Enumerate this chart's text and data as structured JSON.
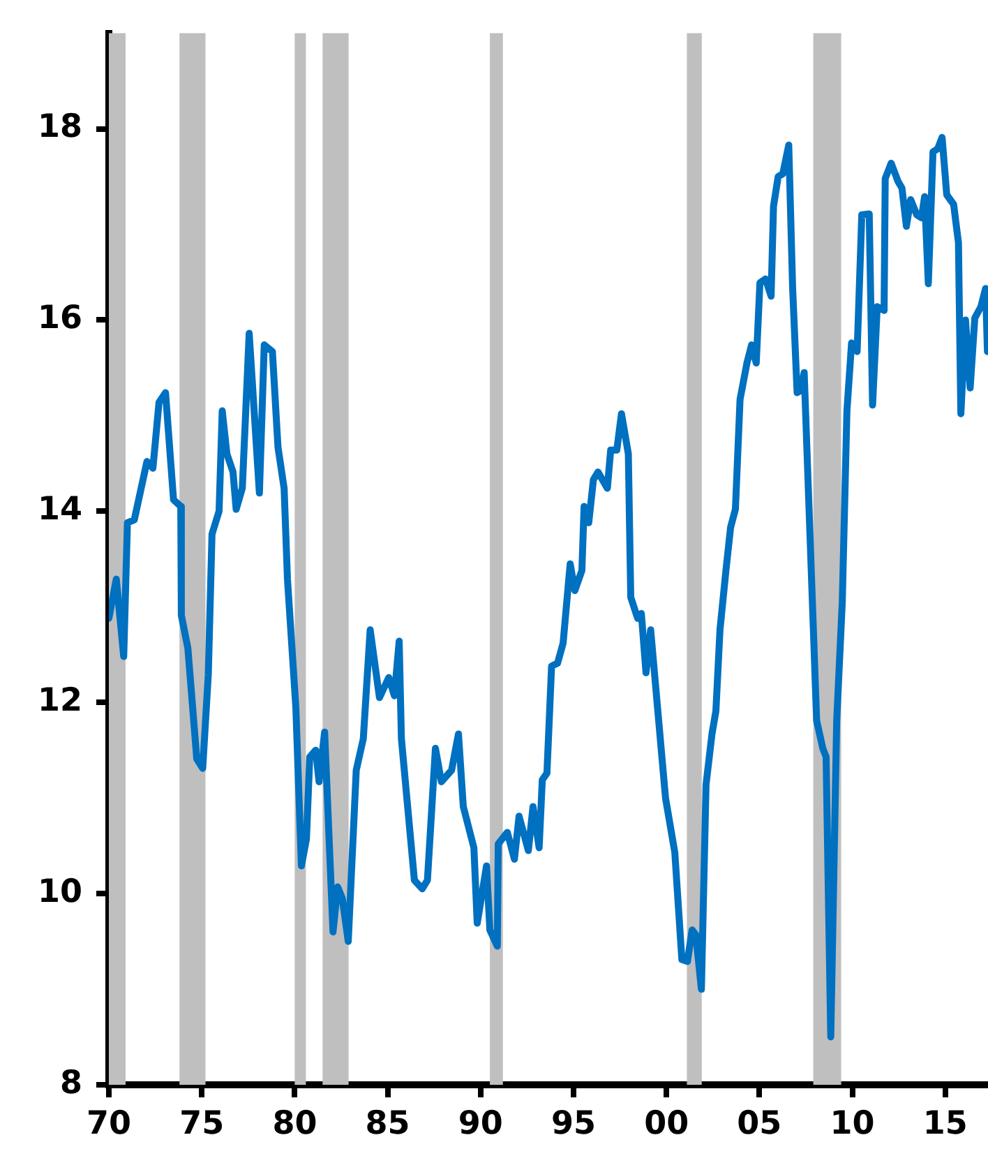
{
  "chart_data": {
    "type": "line",
    "grid": false,
    "legend": false,
    "marker": "none",
    "line_style": "solid",
    "xlim": [
      1970,
      2017.3
    ],
    "ylim": [
      8,
      19
    ],
    "xticks": [
      {
        "value": 1970,
        "label": "70"
      },
      {
        "value": 1975,
        "label": "75"
      },
      {
        "value": 1980,
        "label": "80"
      },
      {
        "value": 1985,
        "label": "85"
      },
      {
        "value": 1990,
        "label": "90"
      },
      {
        "value": 1995,
        "label": "95"
      },
      {
        "value": 2000,
        "label": "00"
      },
      {
        "value": 2005,
        "label": "05"
      },
      {
        "value": 2010,
        "label": "10"
      },
      {
        "value": 2015,
        "label": "15"
      }
    ],
    "yticks": [
      8,
      10,
      12,
      14,
      16,
      18
    ],
    "bands": [
      {
        "axis": "x",
        "from": 1970.0,
        "to": 1970.9,
        "color": "#bfbfbf"
      },
      {
        "axis": "x",
        "from": 1973.8,
        "to": 1975.2,
        "color": "#bfbfbf"
      },
      {
        "axis": "x",
        "from": 1980.0,
        "to": 1980.6,
        "color": "#bfbfbf"
      },
      {
        "axis": "x",
        "from": 1981.5,
        "to": 1982.9,
        "color": "#bfbfbf"
      },
      {
        "axis": "x",
        "from": 1990.5,
        "to": 1991.2,
        "color": "#bfbfbf"
      },
      {
        "axis": "x",
        "from": 2001.1,
        "to": 2001.9,
        "color": "#bfbfbf"
      },
      {
        "axis": "x",
        "from": 2007.9,
        "to": 2009.4,
        "color": "#bfbfbf"
      }
    ],
    "series": [
      {
        "color": "#0070c0",
        "x": [
          1970.0,
          1970.4,
          1970.8,
          1971.0,
          1971.37,
          1972.05,
          1972.37,
          1972.7,
          1973.05,
          1973.48,
          1973.87,
          1973.9,
          1974.25,
          1974.73,
          1975.05,
          1975.35,
          1975.55,
          1975.93,
          1976.1,
          1976.35,
          1976.68,
          1976.85,
          1977.18,
          1977.55,
          1978.1,
          1978.36,
          1978.8,
          1979.1,
          1979.43,
          1979.61,
          1980.06,
          1980.36,
          1980.63,
          1980.81,
          1981.13,
          1981.31,
          1981.61,
          1982.06,
          1982.31,
          1982.56,
          1982.88,
          1983.31,
          1983.69,
          1984.06,
          1984.56,
          1985.06,
          1985.36,
          1985.62,
          1985.74,
          1986.44,
          1986.86,
          1987.14,
          1987.57,
          1987.89,
          1988.44,
          1988.81,
          1989.07,
          1989.64,
          1989.82,
          1990.32,
          1990.5,
          1990.9,
          1990.95,
          1991.44,
          1991.82,
          1992.07,
          1992.57,
          1992.82,
          1993.15,
          1993.32,
          1993.57,
          1993.82,
          1994.14,
          1994.44,
          1994.82,
          1995.07,
          1995.45,
          1995.57,
          1995.82,
          1996.07,
          1996.32,
          1996.82,
          1997.0,
          1997.33,
          1997.58,
          1997.95,
          1998.08,
          1998.45,
          1998.65,
          1998.9,
          1999.15,
          1999.95,
          2000.45,
          2000.83,
          2001.13,
          2001.38,
          2001.58,
          2001.88,
          2002.13,
          2002.45,
          2002.66,
          2002.88,
          2003.2,
          2003.45,
          2003.71,
          2003.96,
          2004.33,
          2004.58,
          2004.83,
          2005.03,
          2005.33,
          2005.63,
          2005.76,
          2006.01,
          2006.26,
          2006.58,
          2006.79,
          2007.03,
          2007.21,
          2007.41,
          2008.08,
          2008.41,
          2008.59,
          2008.84,
          2009.16,
          2009.46,
          2009.71,
          2009.96,
          2010.26,
          2010.51,
          2010.91,
          2011.09,
          2011.34,
          2011.71,
          2011.77,
          2012.09,
          2012.46,
          2012.67,
          2012.91,
          2013.14,
          2013.47,
          2013.72,
          2013.89,
          2014.09,
          2014.34,
          2014.59,
          2014.83,
          2015.08,
          2015.45,
          2015.71,
          2015.84,
          2016.09,
          2016.34,
          2016.59,
          2016.92,
          2017.17,
          2017.27
        ],
        "values": [
          12.88,
          13.29,
          12.48,
          13.88,
          13.91,
          14.52,
          14.45,
          15.14,
          15.24,
          14.12,
          14.05,
          12.91,
          12.57,
          11.41,
          11.31,
          12.29,
          13.76,
          14.0,
          15.05,
          14.6,
          14.41,
          14.02,
          14.24,
          15.86,
          14.19,
          15.74,
          15.67,
          14.67,
          14.24,
          13.29,
          11.95,
          10.29,
          10.57,
          11.43,
          11.5,
          11.17,
          11.69,
          9.6,
          10.07,
          9.95,
          9.5,
          11.29,
          11.62,
          12.76,
          12.05,
          12.26,
          12.07,
          12.64,
          11.62,
          10.14,
          10.05,
          10.14,
          11.52,
          11.17,
          11.29,
          11.67,
          10.91,
          10.48,
          9.69,
          10.29,
          9.62,
          9.45,
          10.52,
          10.64,
          10.36,
          10.81,
          10.45,
          10.91,
          10.48,
          11.19,
          11.26,
          12.38,
          12.41,
          12.62,
          13.45,
          13.17,
          13.38,
          14.05,
          13.88,
          14.33,
          14.41,
          14.24,
          14.64,
          14.64,
          15.02,
          14.6,
          13.1,
          12.88,
          12.93,
          12.31,
          12.76,
          11.0,
          10.43,
          9.31,
          9.29,
          9.62,
          9.57,
          9.0,
          11.14,
          11.67,
          11.91,
          12.76,
          13.38,
          13.83,
          14.02,
          15.17,
          15.55,
          15.74,
          15.55,
          16.39,
          16.43,
          16.25,
          17.19,
          17.5,
          17.53,
          17.83,
          16.33,
          15.24,
          15.26,
          15.45,
          11.81,
          11.52,
          11.43,
          8.5,
          11.81,
          13.05,
          15.05,
          15.76,
          15.67,
          17.1,
          17.11,
          15.11,
          16.14,
          16.1,
          17.48,
          17.64,
          17.45,
          17.38,
          16.98,
          17.26,
          17.1,
          17.07,
          17.29,
          16.38,
          17.76,
          17.79,
          17.91,
          17.31,
          17.21,
          16.81,
          15.02,
          16.0,
          15.29,
          16.02,
          16.14,
          16.33,
          15.67
        ]
      }
    ]
  }
}
